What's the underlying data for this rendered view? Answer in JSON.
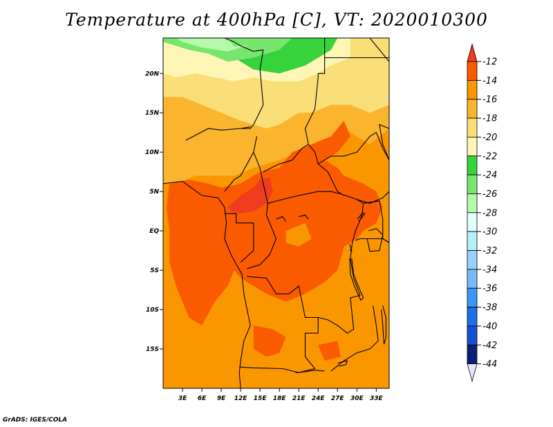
{
  "title": "Temperature at 400hPa [C], VT: 2020010300",
  "credit": "GrADS: IGES/COLA",
  "chart_data": {
    "type": "heatmap",
    "title": "Temperature at 400hPa [C], VT: 2020010300",
    "xlabel": "",
    "ylabel": "",
    "xlim": [
      0,
      35
    ],
    "ylim": [
      -20,
      24.5
    ],
    "x_ticks": [
      {
        "value": 3,
        "label": "3E"
      },
      {
        "value": 6,
        "label": "6E"
      },
      {
        "value": 9,
        "label": "9E"
      },
      {
        "value": 12,
        "label": "12E"
      },
      {
        "value": 15,
        "label": "15E"
      },
      {
        "value": 18,
        "label": "18E"
      },
      {
        "value": 21,
        "label": "21E"
      },
      {
        "value": 24,
        "label": "24E"
      },
      {
        "value": 27,
        "label": "27E"
      },
      {
        "value": 30,
        "label": "30E"
      },
      {
        "value": 33,
        "label": "33E"
      }
    ],
    "y_ticks": [
      {
        "value": 20,
        "label": "20N"
      },
      {
        "value": 15,
        "label": "15N"
      },
      {
        "value": 10,
        "label": "10N"
      },
      {
        "value": 5,
        "label": "5N"
      },
      {
        "value": 0,
        "label": "EQ"
      },
      {
        "value": -5,
        "label": "5S"
      },
      {
        "value": -10,
        "label": "10S"
      },
      {
        "value": -15,
        "label": "15S"
      }
    ],
    "colorbar": {
      "labels": [
        "-12",
        "-14",
        "-16",
        "-18",
        "-20",
        "-22",
        "-24",
        "-26",
        "-28",
        "-30",
        "-32",
        "-34",
        "-36",
        "-38",
        "-40",
        "-42",
        "-44"
      ],
      "bins": [
        {
          "range": "> -12",
          "color": "#f03c1e"
        },
        {
          "range": "-14 to -12",
          "color": "#fa5a00"
        },
        {
          "range": "-16 to -14",
          "color": "#fa9600"
        },
        {
          "range": "-18 to -16",
          "color": "#fab42d"
        },
        {
          "range": "-20 to -18",
          "color": "#fade78"
        },
        {
          "range": "-22 to -20",
          "color": "#fff5b4"
        },
        {
          "range": "-24 to -22",
          "color": "#37d23c"
        },
        {
          "range": "-26 to -24",
          "color": "#78e66e"
        },
        {
          "range": "-28 to -26",
          "color": "#b4faaa"
        },
        {
          "range": "-30 to -28",
          "color": "#e1ffff"
        },
        {
          "range": "-32 to -30",
          "color": "#b4f0fa"
        },
        {
          "range": "-34 to -32",
          "color": "#96d2fa"
        },
        {
          "range": "-36 to -34",
          "color": "#78b9fa"
        },
        {
          "range": "-38 to -36",
          "color": "#3c96f5"
        },
        {
          "range": "-40 to -38",
          "color": "#1e6ee6"
        },
        {
          "range": "-42 to -40",
          "color": "#1450d2"
        },
        {
          "range": "-44 to -42",
          "color": "#0a1e78"
        },
        {
          "range": "< -44",
          "color": "#e6e6ff"
        }
      ]
    },
    "field_zones": [
      {
        "range": "-26 to -24",
        "lon": [
          1,
          27
        ],
        "lat": [
          21,
          24.5
        ]
      },
      {
        "range": "-24 to -22",
        "lon": [
          12,
          26
        ],
        "lat": [
          19,
          23
        ]
      },
      {
        "range": "-22 to -20",
        "lon": [
          0,
          26
        ],
        "lat": [
          18,
          21
        ]
      },
      {
        "range": "-20 to -18",
        "lon": [
          0,
          35
        ],
        "lat": [
          14,
          19
        ]
      },
      {
        "range": "-18 to -16",
        "lon": [
          0,
          35
        ],
        "lat": [
          8,
          15
        ]
      },
      {
        "range": "-16 to -14",
        "lon": [
          0,
          35
        ],
        "lat": [
          -20,
          8
        ]
      },
      {
        "range": "-14 to -12",
        "lon": [
          1,
          34
        ],
        "lat": [
          -12,
          8
        ]
      },
      {
        "range": "> -12",
        "lon": [
          10,
          17
        ],
        "lat": [
          2,
          7
        ]
      }
    ]
  }
}
